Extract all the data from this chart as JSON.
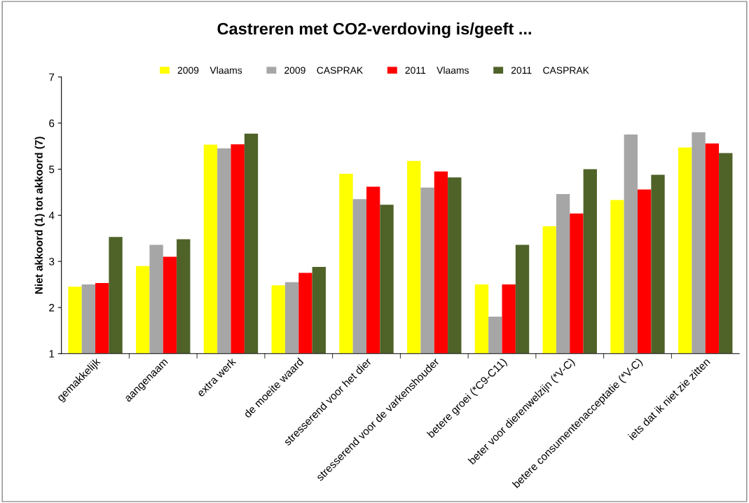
{
  "chart_data": {
    "type": "bar",
    "title": "Castreren met CO2-verdoving is/geeft ...",
    "ylabel": "Niet akkoord (1) tot akkoord (7)",
    "categories": [
      "gemakkelijk",
      "aangenaam",
      "extra werk",
      "de moeite waard",
      "stresserend voor het dier",
      "stresserend voor de varkenshouder",
      "betere groei (*C9-C11)",
      "beter voor dierenwelzijn (*V-C)",
      "betere consumentenacceptatie (*V-C)",
      "iets dat ik niet zie zitten"
    ],
    "series": [
      {
        "name": "2009    Vlaams",
        "color": "#ffff00",
        "values": [
          2.45,
          2.9,
          5.53,
          2.48,
          4.9,
          5.18,
          2.5,
          3.76,
          4.33,
          5.47
        ]
      },
      {
        "name": "2009    CASPRAK",
        "color": "#a6a6a6",
        "values": [
          2.5,
          3.36,
          5.45,
          2.55,
          4.35,
          4.6,
          1.8,
          4.46,
          5.75,
          5.8
        ]
      },
      {
        "name": "2011    Vlaams",
        "color": "#ff0000",
        "values": [
          2.53,
          3.1,
          5.54,
          2.75,
          4.62,
          4.95,
          2.5,
          4.04,
          4.56,
          5.56
        ]
      },
      {
        "name": "2011    CASPRAK",
        "color": "#4f6228",
        "values": [
          3.53,
          3.48,
          5.77,
          2.88,
          4.23,
          4.82,
          3.36,
          5.0,
          4.88,
          5.35
        ]
      }
    ],
    "ylim": [
      1,
      7
    ],
    "yticks": [
      1,
      2,
      3,
      4,
      5,
      6,
      7
    ],
    "grid": false,
    "legend": "top"
  }
}
